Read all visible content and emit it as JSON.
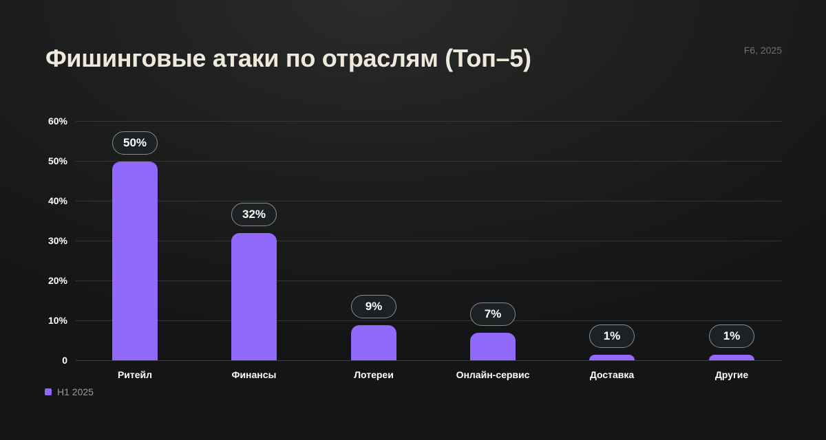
{
  "header": {
    "title": "Фишинговые атаки по отраслям (Топ–5)",
    "source": "F6, 2025"
  },
  "colors": {
    "bar": "#9369fb",
    "title": "#efe9dc",
    "background": "#1a1b1c"
  },
  "chart_data": {
    "type": "bar",
    "title": "Фишинговые атаки по отраслям (Топ–5)",
    "xlabel": "",
    "ylabel": "",
    "categories": [
      "Ритейл",
      "Финансы",
      "Лотереи",
      "Онлайн-сервис",
      "Доставка",
      "Другие"
    ],
    "series": [
      {
        "name": "H1 2025",
        "values": [
          50,
          32,
          9,
          7,
          1,
          1
        ]
      }
    ],
    "data_labels": [
      "50%",
      "32%",
      "9%",
      "7%",
      "1%",
      "1%"
    ],
    "ylim": [
      0,
      60
    ],
    "yticks": [
      0,
      10,
      20,
      30,
      40,
      50,
      60
    ],
    "ytick_labels": [
      "0",
      "10%",
      "20%",
      "30%",
      "40%",
      "50%",
      "60%"
    ],
    "grid": true,
    "legend_position": "bottom-left"
  },
  "legend": {
    "items": [
      {
        "label": "H1 2025"
      }
    ]
  }
}
